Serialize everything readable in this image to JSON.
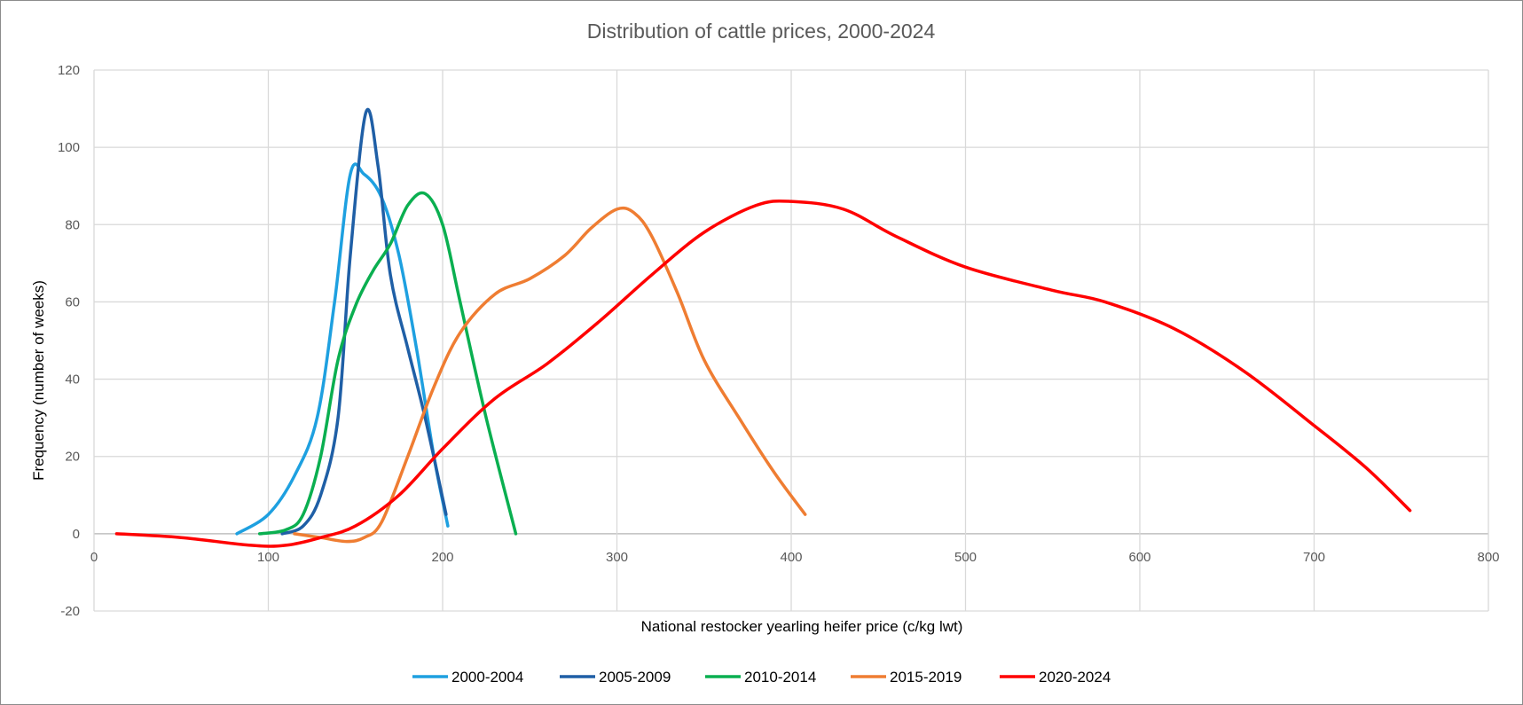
{
  "chart_data": {
    "type": "line",
    "title": "Distribution of cattle prices, 2000-2024",
    "xlabel": "National restocker yearling heifer price (c/kg lwt)",
    "ylabel": "Frequency (number of weeks)",
    "xlim": [
      0,
      800
    ],
    "ylim": [
      -20,
      120
    ],
    "x_ticks": [
      "0",
      "100",
      "200",
      "300",
      "400",
      "500",
      "600",
      "700",
      "800"
    ],
    "y_ticks": [
      "-20",
      "0",
      "20",
      "40",
      "60",
      "80",
      "100",
      "120"
    ],
    "grid": true,
    "legend_position": "bottom",
    "smooth": true,
    "series": [
      {
        "name": "2000-2004",
        "color": "#1ea0e0",
        "points": [
          [
            82,
            0
          ],
          [
            100,
            5
          ],
          [
            115,
            15
          ],
          [
            128,
            30
          ],
          [
            138,
            60
          ],
          [
            147,
            93
          ],
          [
            155,
            93
          ],
          [
            165,
            87
          ],
          [
            175,
            72
          ],
          [
            185,
            48
          ],
          [
            195,
            20
          ],
          [
            203,
            2
          ]
        ]
      },
      {
        "name": "2005-2009",
        "color": "#1f5fa6",
        "points": [
          [
            108,
            0
          ],
          [
            120,
            2
          ],
          [
            130,
            10
          ],
          [
            140,
            30
          ],
          [
            147,
            72
          ],
          [
            156,
            109
          ],
          [
            163,
            95
          ],
          [
            170,
            67
          ],
          [
            180,
            48
          ],
          [
            190,
            30
          ],
          [
            202,
            5
          ]
        ]
      },
      {
        "name": "2010-2014",
        "color": "#0aaf50",
        "points": [
          [
            95,
            0
          ],
          [
            110,
            1
          ],
          [
            120,
            5
          ],
          [
            130,
            20
          ],
          [
            140,
            45
          ],
          [
            150,
            59
          ],
          [
            160,
            68
          ],
          [
            170,
            75
          ],
          [
            180,
            85
          ],
          [
            190,
            88
          ],
          [
            200,
            80
          ],
          [
            210,
            60
          ],
          [
            225,
            30
          ],
          [
            242,
            0
          ]
        ]
      },
      {
        "name": "2015-2019",
        "color": "#ef7d32",
        "points": [
          [
            115,
            0
          ],
          [
            130,
            -1
          ],
          [
            145,
            -2
          ],
          [
            155,
            -1
          ],
          [
            165,
            3
          ],
          [
            180,
            20
          ],
          [
            195,
            38
          ],
          [
            210,
            52
          ],
          [
            230,
            62
          ],
          [
            250,
            66
          ],
          [
            270,
            72
          ],
          [
            285,
            79
          ],
          [
            300,
            84
          ],
          [
            310,
            83
          ],
          [
            320,
            77
          ],
          [
            335,
            62
          ],
          [
            350,
            45
          ],
          [
            370,
            30
          ],
          [
            390,
            16
          ],
          [
            408,
            5
          ]
        ]
      },
      {
        "name": "2020-2024",
        "color": "#ff0000",
        "points": [
          [
            13,
            0
          ],
          [
            50,
            -1
          ],
          [
            90,
            -3
          ],
          [
            110,
            -3
          ],
          [
            130,
            -1
          ],
          [
            150,
            2
          ],
          [
            175,
            10
          ],
          [
            200,
            22
          ],
          [
            230,
            35
          ],
          [
            260,
            44
          ],
          [
            290,
            55
          ],
          [
            320,
            67
          ],
          [
            350,
            78
          ],
          [
            380,
            85
          ],
          [
            400,
            86
          ],
          [
            430,
            84
          ],
          [
            460,
            77
          ],
          [
            500,
            69
          ],
          [
            550,
            63
          ],
          [
            580,
            60
          ],
          [
            620,
            53
          ],
          [
            660,
            42
          ],
          [
            700,
            28
          ],
          [
            730,
            17
          ],
          [
            755,
            6
          ]
        ]
      }
    ]
  }
}
